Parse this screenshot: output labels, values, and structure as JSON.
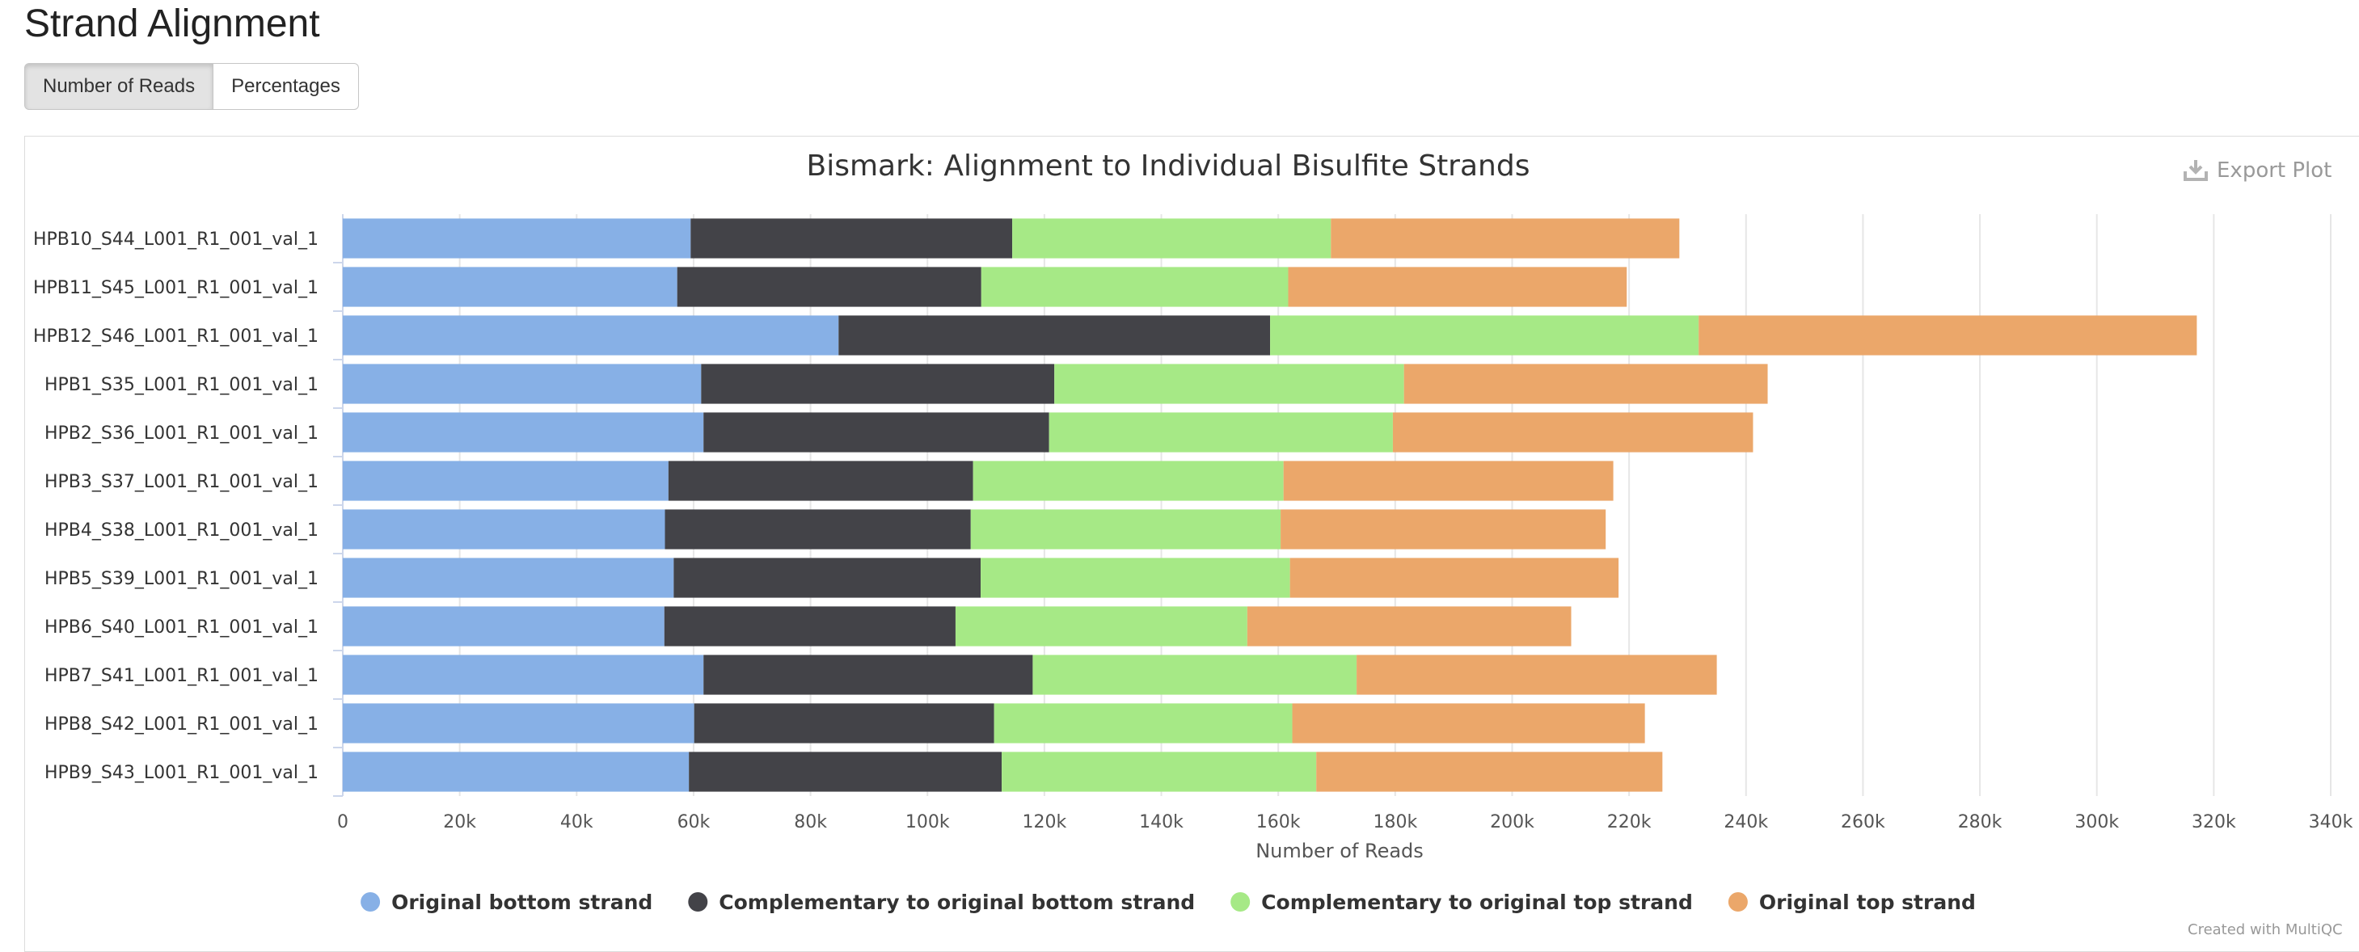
{
  "page": {
    "section_title": "Strand Alignment",
    "buttons": [
      {
        "label": "Number of Reads",
        "active": true
      },
      {
        "label": "Percentages",
        "active": false
      }
    ],
    "export_label": "Export Plot",
    "credit": "Created with MultiQC"
  },
  "chart_data": {
    "type": "bar",
    "orientation": "horizontal",
    "stacked": true,
    "title": "Bismark: Alignment to Individual Bisulfite Strands",
    "xlabel": "Number of Reads",
    "ylabel": "",
    "xlim": [
      0,
      340000
    ],
    "xticks": [
      0,
      20000,
      40000,
      60000,
      80000,
      100000,
      120000,
      140000,
      160000,
      180000,
      200000,
      220000,
      240000,
      260000,
      280000,
      300000,
      320000,
      340000
    ],
    "xtick_labels": [
      "0",
      "20k",
      "40k",
      "60k",
      "80k",
      "100k",
      "120k",
      "140k",
      "160k",
      "180k",
      "200k",
      "220k",
      "240k",
      "260k",
      "280k",
      "300k",
      "320k",
      "340k"
    ],
    "grid": true,
    "legend_position": "bottom-center",
    "categories": [
      "HPB10_S44_L001_R1_001_val_1",
      "HPB11_S45_L001_R1_001_val_1",
      "HPB12_S46_L001_R1_001_val_1",
      "HPB1_S35_L001_R1_001_val_1",
      "HPB2_S36_L001_R1_001_val_1",
      "HPB3_S37_L001_R1_001_val_1",
      "HPB4_S38_L001_R1_001_val_1",
      "HPB5_S39_L001_R1_001_val_1",
      "HPB6_S40_L001_R1_001_val_1",
      "HPB7_S41_L001_R1_001_val_1",
      "HPB8_S42_L001_R1_001_val_1",
      "HPB9_S43_L001_R1_001_val_1"
    ],
    "series": [
      {
        "name": "Original bottom strand",
        "color": "#87b0e6",
        "values": [
          59500,
          57200,
          84800,
          61300,
          61700,
          55700,
          55100,
          56600,
          55000,
          61700,
          60100,
          59200
        ]
      },
      {
        "name": "Complementary to original bottom strand",
        "color": "#434348",
        "values": [
          55000,
          52000,
          73800,
          60400,
          59100,
          52100,
          52300,
          52500,
          49800,
          56300,
          51300,
          53500
        ]
      },
      {
        "name": "Complementary to original top strand",
        "color": "#a6e986",
        "values": [
          54500,
          52500,
          73300,
          59800,
          58800,
          53100,
          53000,
          52900,
          49900,
          55400,
          51000,
          53800
        ]
      },
      {
        "name": "Original top strand",
        "color": "#eba76a",
        "values": [
          59600,
          57900,
          85200,
          62200,
          61600,
          56400,
          55600,
          56200,
          55400,
          61600,
          60300,
          59200
        ]
      }
    ]
  }
}
